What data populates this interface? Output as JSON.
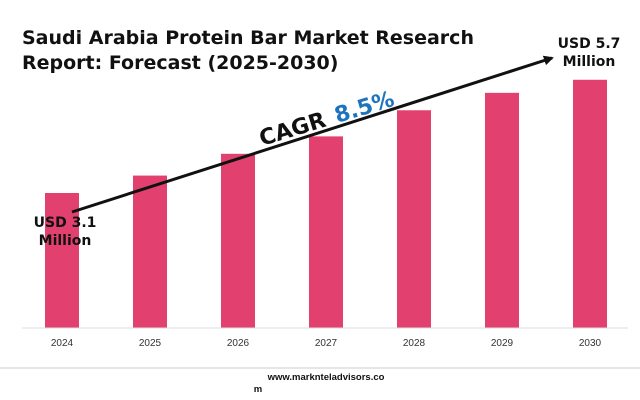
{
  "title": {
    "line1": "Saudi Arabia Protein Bar Market Research",
    "line2": "Report: Forecast (2025-2030)"
  },
  "cagr": {
    "label": "CAGR",
    "value": "8.5%"
  },
  "start_callout": {
    "line1": "USD 3.1",
    "line2": "Million"
  },
  "end_callout": {
    "line1": "USD 5.7",
    "line2": "Million"
  },
  "footer": {
    "line1": "www.marknteladvisors.co",
    "line2": "m"
  },
  "colors": {
    "bar": "#e2406e",
    "arrow": "#111111",
    "cagr_value": "#1e73be"
  },
  "chart_data": {
    "type": "bar",
    "categories": [
      "2024",
      "2025",
      "2026",
      "2027",
      "2028",
      "2029",
      "2030"
    ],
    "values": [
      3.1,
      3.5,
      4.0,
      4.4,
      5.0,
      5.4,
      5.7
    ],
    "title": "Saudi Arabia Protein Bar Market Research Report: Forecast (2025-2030)",
    "xlabel": "",
    "ylabel": "",
    "ylim": [
      0,
      6.2
    ],
    "grid": false,
    "legend": "none"
  }
}
